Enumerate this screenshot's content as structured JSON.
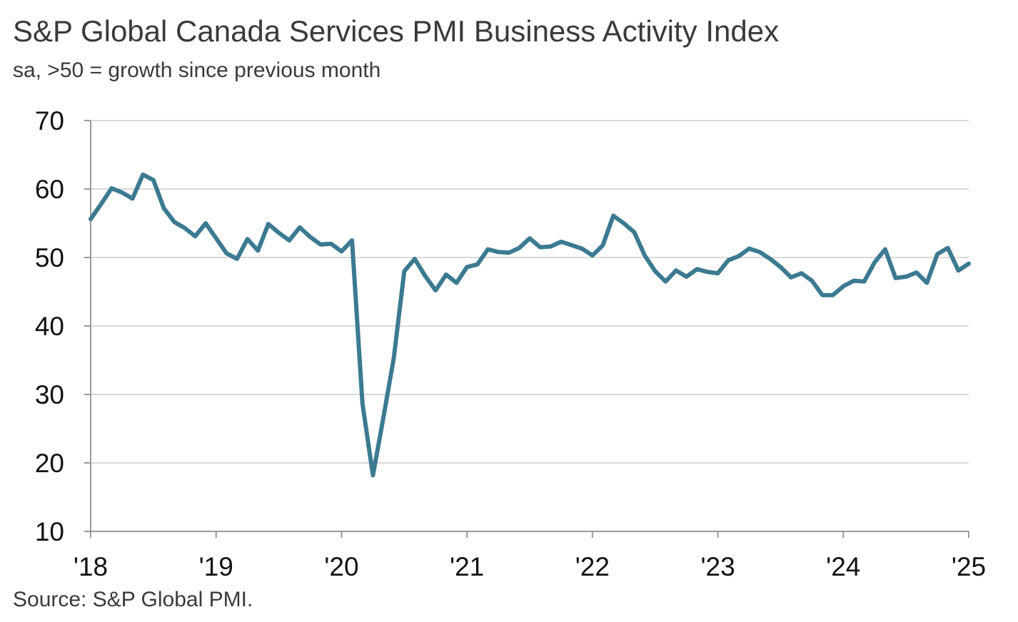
{
  "title": "S&P Global Canada Services PMI Business Activity Index",
  "subtitle": "sa, >50 = growth since previous month",
  "source": "Source: S&P Global PMI.",
  "colors": {
    "line": "#3b7a91",
    "grid": "#d9d9d9",
    "axis": "#999999"
  },
  "chart_data": {
    "type": "line",
    "title": "S&P Global Canada Services PMI Business Activity Index",
    "subtitle": "sa, >50 = growth since previous month",
    "xlabel": "",
    "ylabel": "",
    "ylim": [
      10,
      70
    ],
    "y_ticks": [
      10,
      20,
      30,
      40,
      50,
      60,
      70
    ],
    "x_ticks": [
      "'18",
      "'19",
      "'20",
      "'21",
      "'22",
      "'23",
      "'24",
      "'25"
    ],
    "grid": true,
    "legend": "none",
    "x": [
      "2018-01",
      "2018-02",
      "2018-03",
      "2018-04",
      "2018-05",
      "2018-06",
      "2018-07",
      "2018-08",
      "2018-09",
      "2018-10",
      "2018-11",
      "2018-12",
      "2019-01",
      "2019-02",
      "2019-03",
      "2019-04",
      "2019-05",
      "2019-06",
      "2019-07",
      "2019-08",
      "2019-09",
      "2019-10",
      "2019-11",
      "2019-12",
      "2020-01",
      "2020-02",
      "2020-03",
      "2020-04",
      "2020-05",
      "2020-06",
      "2020-07",
      "2020-08",
      "2020-09",
      "2020-10",
      "2020-11",
      "2020-12",
      "2021-01",
      "2021-02",
      "2021-03",
      "2021-04",
      "2021-05",
      "2021-06",
      "2021-07",
      "2021-08",
      "2021-09",
      "2021-10",
      "2021-11",
      "2021-12",
      "2022-01",
      "2022-02",
      "2022-03",
      "2022-04",
      "2022-05",
      "2022-06",
      "2022-07",
      "2022-08",
      "2022-09",
      "2022-10",
      "2022-11",
      "2022-12",
      "2023-01",
      "2023-02",
      "2023-03",
      "2023-04",
      "2023-05",
      "2023-06",
      "2023-07",
      "2023-08",
      "2023-09",
      "2023-10",
      "2023-11",
      "2023-12",
      "2024-01",
      "2024-02",
      "2024-03",
      "2024-04",
      "2024-05",
      "2024-06",
      "2024-07",
      "2024-08",
      "2024-09",
      "2024-10",
      "2024-11",
      "2024-12",
      "2025-01"
    ],
    "series": [
      {
        "values": [
          55.6,
          57.8,
          60.1,
          59.5,
          58.6,
          62.1,
          61.3,
          57.2,
          55.2,
          54.3,
          53.1,
          55.0,
          52.8,
          50.6,
          49.8,
          52.7,
          51.0,
          54.9,
          53.6,
          52.5,
          54.4,
          53.0,
          51.9,
          52.0,
          50.9,
          52.5,
          28.7,
          18.2,
          26.6,
          35.3,
          48.0,
          49.8,
          47.3,
          45.2,
          47.5,
          46.3,
          48.6,
          49.0,
          51.2,
          50.8,
          50.7,
          51.4,
          52.8,
          51.5,
          51.6,
          52.3,
          51.8,
          51.3,
          50.3,
          51.8,
          56.1,
          55.0,
          53.7,
          50.3,
          48.0,
          46.5,
          48.1,
          47.2,
          48.3,
          47.9,
          47.7,
          49.6,
          50.2,
          51.3,
          50.8,
          49.8,
          48.6,
          47.1,
          47.7,
          46.6,
          44.5,
          44.5,
          45.8,
          46.6,
          46.5,
          49.3,
          51.2,
          47.0,
          47.2,
          47.8,
          46.3,
          50.5,
          51.4,
          48.1,
          49.1
        ]
      }
    ]
  }
}
